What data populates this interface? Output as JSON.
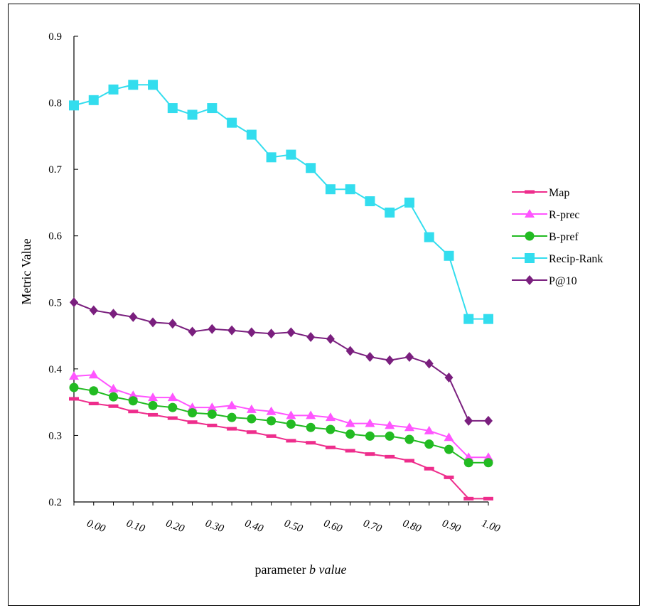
{
  "chart_data": {
    "type": "line",
    "xlabel_prefix": "parameter ",
    "xlabel_var": "b",
    "xlabel_suffix": " value",
    "ylabel": "Metric Value",
    "ylim": [
      0.2,
      0.9
    ],
    "yticks": [
      0.2,
      0.3,
      0.4,
      0.5,
      0.6,
      0.7,
      0.8,
      0.9
    ],
    "ytick_labels": [
      "0.2",
      "0.3",
      "0.4",
      "0.5",
      "0.6",
      "0.7",
      "0.8",
      "0.9"
    ],
    "xtick_labels": [
      "0.00",
      "0.10",
      "0.20",
      "0.30",
      "0.40",
      "0.50",
      "0.60",
      "0.70",
      "0.80",
      "0.90",
      "1.00"
    ],
    "legend_position": "right",
    "grid": false,
    "x": [
      -0.05,
      0.0,
      0.05,
      0.1,
      0.15,
      0.2,
      0.25,
      0.3,
      0.35,
      0.4,
      0.45,
      0.5,
      0.55,
      0.6,
      0.65,
      0.7,
      0.75,
      0.8,
      0.85,
      0.9,
      0.95,
      1.0
    ],
    "series": [
      {
        "name": "Map",
        "color": "#ee2d8c",
        "marker": "dash",
        "values": [
          0.355,
          0.348,
          0.344,
          0.336,
          0.331,
          0.326,
          0.32,
          0.315,
          0.31,
          0.305,
          0.299,
          0.292,
          0.289,
          0.282,
          0.277,
          0.272,
          0.268,
          0.262,
          0.25,
          0.237,
          0.205,
          0.205
        ]
      },
      {
        "name": "R-prec",
        "color": "#ff55ff",
        "marker": "triangle",
        "values": [
          0.389,
          0.391,
          0.37,
          0.36,
          0.357,
          0.357,
          0.342,
          0.342,
          0.345,
          0.339,
          0.336,
          0.33,
          0.33,
          0.327,
          0.318,
          0.318,
          0.315,
          0.312,
          0.307,
          0.297,
          0.267,
          0.267
        ]
      },
      {
        "name": "B-pref",
        "color": "#22bb22",
        "marker": "circle",
        "values": [
          0.372,
          0.367,
          0.358,
          0.352,
          0.345,
          0.342,
          0.334,
          0.332,
          0.327,
          0.325,
          0.322,
          0.317,
          0.312,
          0.309,
          0.302,
          0.299,
          0.299,
          0.294,
          0.287,
          0.279,
          0.259,
          0.259
        ]
      },
      {
        "name": "Recip-Rank",
        "color": "#33ddee",
        "marker": "square",
        "values": [
          0.796,
          0.804,
          0.82,
          0.827,
          0.827,
          0.792,
          0.782,
          0.792,
          0.77,
          0.752,
          0.718,
          0.722,
          0.702,
          0.67,
          0.67,
          0.652,
          0.635,
          0.65,
          0.598,
          0.57,
          0.475,
          0.475
        ]
      },
      {
        "name": "P@10",
        "color": "#7a1f7e",
        "marker": "diamond",
        "values": [
          0.5,
          0.488,
          0.483,
          0.478,
          0.47,
          0.468,
          0.456,
          0.46,
          0.458,
          0.455,
          0.453,
          0.455,
          0.448,
          0.445,
          0.427,
          0.418,
          0.413,
          0.418,
          0.408,
          0.387,
          0.322,
          0.322
        ]
      }
    ]
  }
}
